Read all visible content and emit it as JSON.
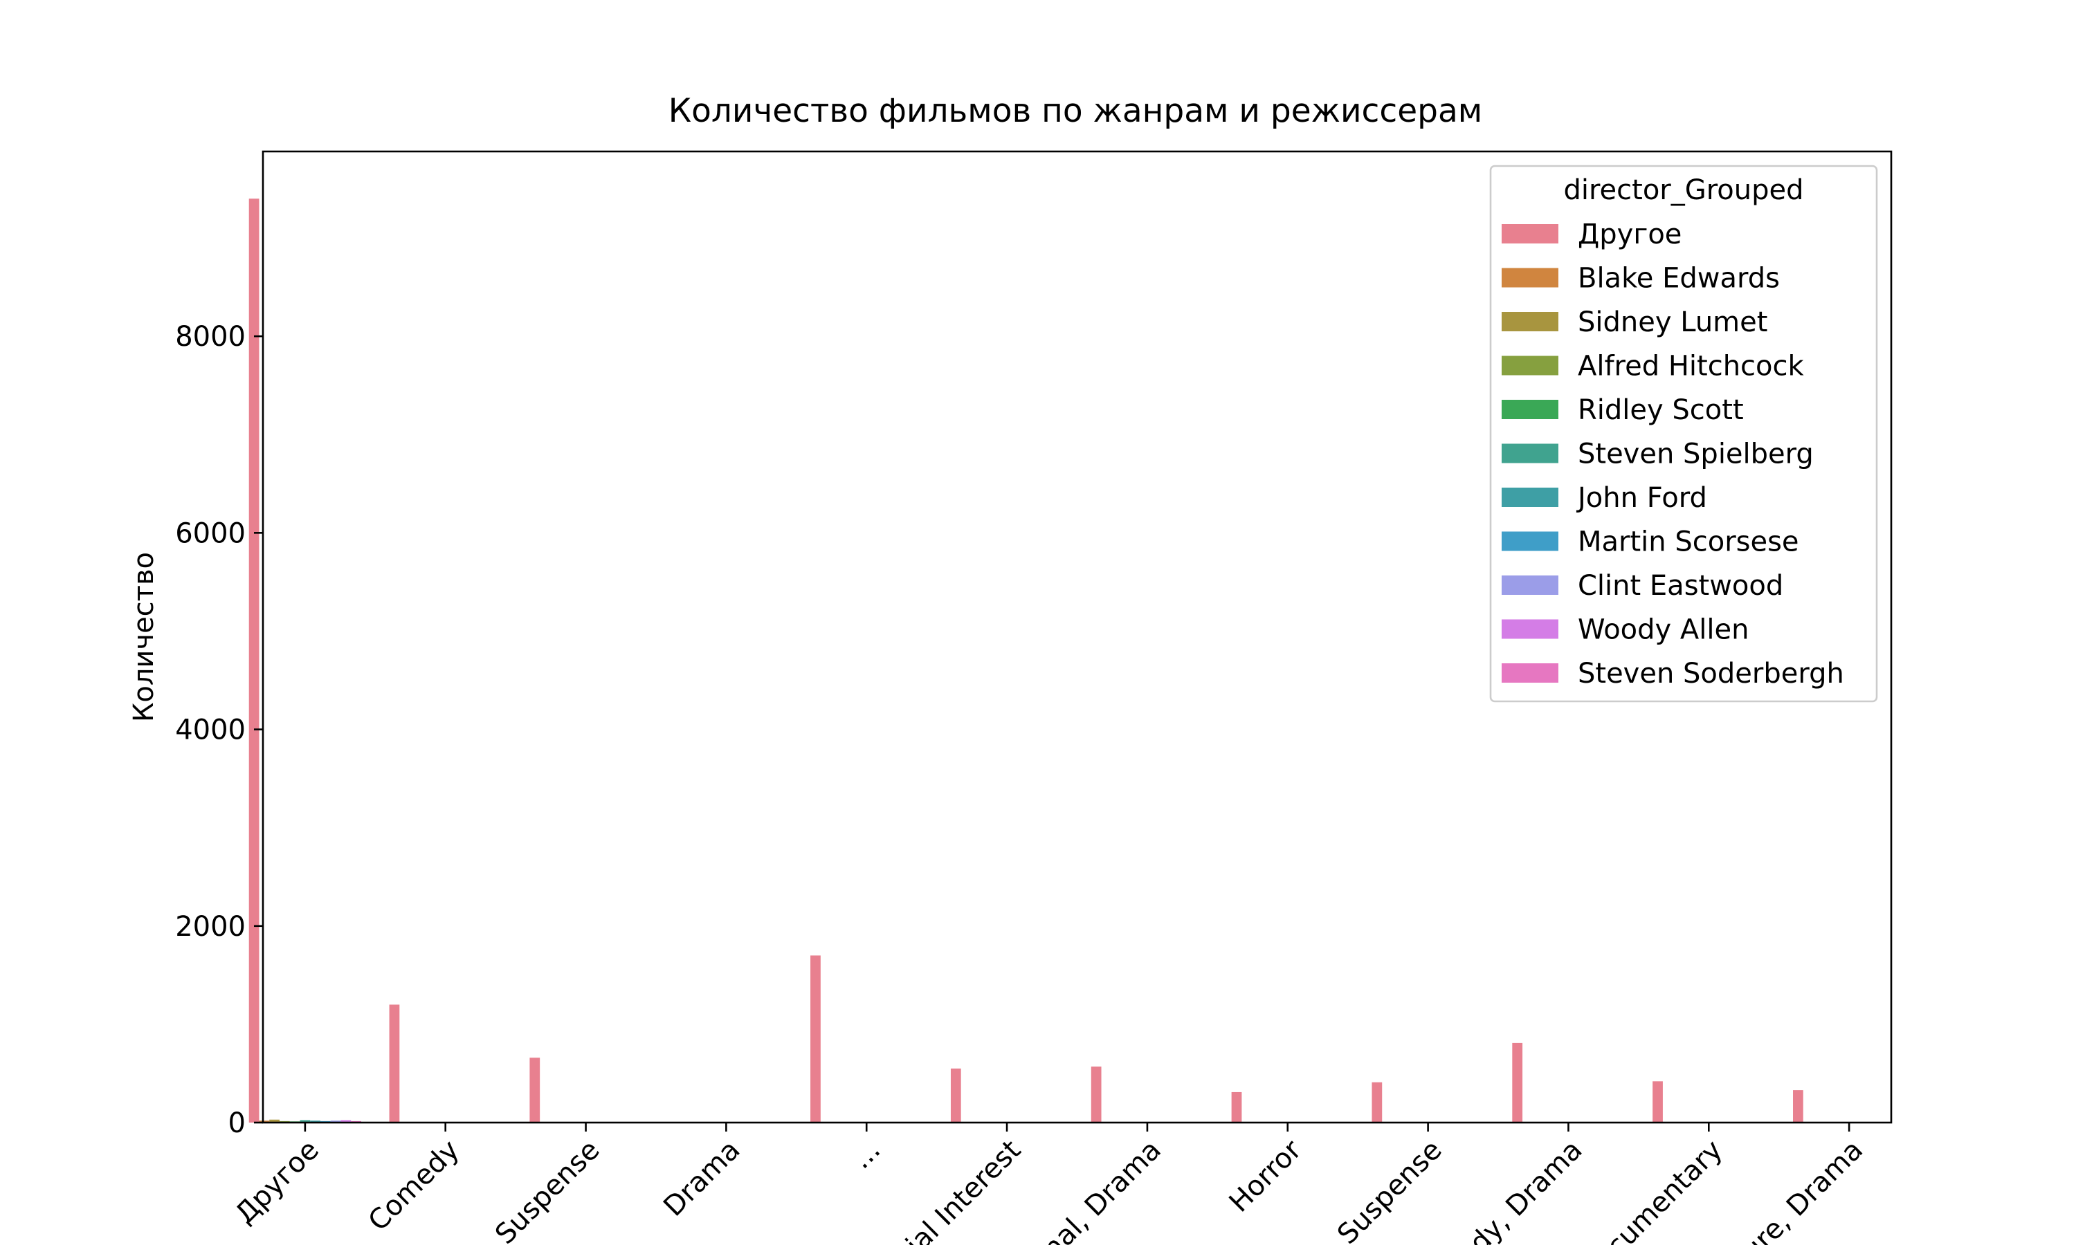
{
  "chart_data": {
    "type": "bar",
    "title": "Количество фильмов по жанрам и режиссерам",
    "xlabel": "",
    "ylabel": "Количество",
    "ylim": [
      0,
      9880
    ],
    "yticks": [
      0,
      2000,
      4000,
      6000,
      8000
    ],
    "grid": false,
    "legend_title": "director_Grouped",
    "legend_position": "upper right",
    "categories": [
      "Другое",
      "Comedy",
      "... Suspense",
      "Drama",
      "...",
      "...ial Interest",
      "...nal, Drama",
      "Horror",
      "... Suspense",
      "...dy, Drama",
      "...cumentary",
      "...ure, Drama"
    ],
    "series": [
      {
        "name": "Другое",
        "color": "#e8808f",
        "values": [
          9400,
          1200,
          660,
          null,
          1700,
          550,
          570,
          310,
          410,
          810,
          420,
          330
        ]
      },
      {
        "name": "Blake Edwards",
        "color": "#d0853f",
        "values": [
          20,
          0,
          0,
          null,
          0,
          0,
          0,
          0,
          0,
          0,
          0,
          0
        ]
      },
      {
        "name": "Sidney Lumet",
        "color": "#a8953f",
        "values": [
          30,
          0,
          0,
          null,
          0,
          0,
          0,
          0,
          0,
          0,
          0,
          0
        ]
      },
      {
        "name": "Alfred Hitchcock",
        "color": "#86a03f",
        "values": [
          15,
          0,
          0,
          null,
          0,
          0,
          0,
          0,
          0,
          0,
          0,
          0
        ]
      },
      {
        "name": "Ridley Scott",
        "color": "#3aa856",
        "values": [
          12,
          0,
          0,
          null,
          0,
          0,
          0,
          0,
          0,
          0,
          0,
          0
        ]
      },
      {
        "name": "Steven Spielberg",
        "color": "#40a38f",
        "values": [
          25,
          0,
          0,
          null,
          0,
          0,
          0,
          0,
          0,
          0,
          0,
          0
        ]
      },
      {
        "name": "John Ford",
        "color": "#3e9fa5",
        "values": [
          20,
          0,
          0,
          null,
          0,
          0,
          0,
          0,
          0,
          0,
          0,
          0
        ]
      },
      {
        "name": "Martin Scorsese",
        "color": "#3f9ec8",
        "values": [
          15,
          0,
          0,
          null,
          0,
          0,
          0,
          0,
          0,
          0,
          0,
          0
        ]
      },
      {
        "name": "Clint Eastwood",
        "color": "#9b9de8",
        "values": [
          20,
          0,
          0,
          null,
          0,
          0,
          0,
          0,
          0,
          0,
          0,
          0
        ]
      },
      {
        "name": "Woody Allen",
        "color": "#d47de6",
        "values": [
          25,
          0,
          0,
          null,
          0,
          0,
          0,
          0,
          0,
          0,
          0,
          0
        ]
      },
      {
        "name": "Steven Soderbergh",
        "color": "#e677c1",
        "values": [
          15,
          0,
          0,
          null,
          0,
          0,
          0,
          0,
          0,
          0,
          0,
          0
        ]
      }
    ]
  }
}
